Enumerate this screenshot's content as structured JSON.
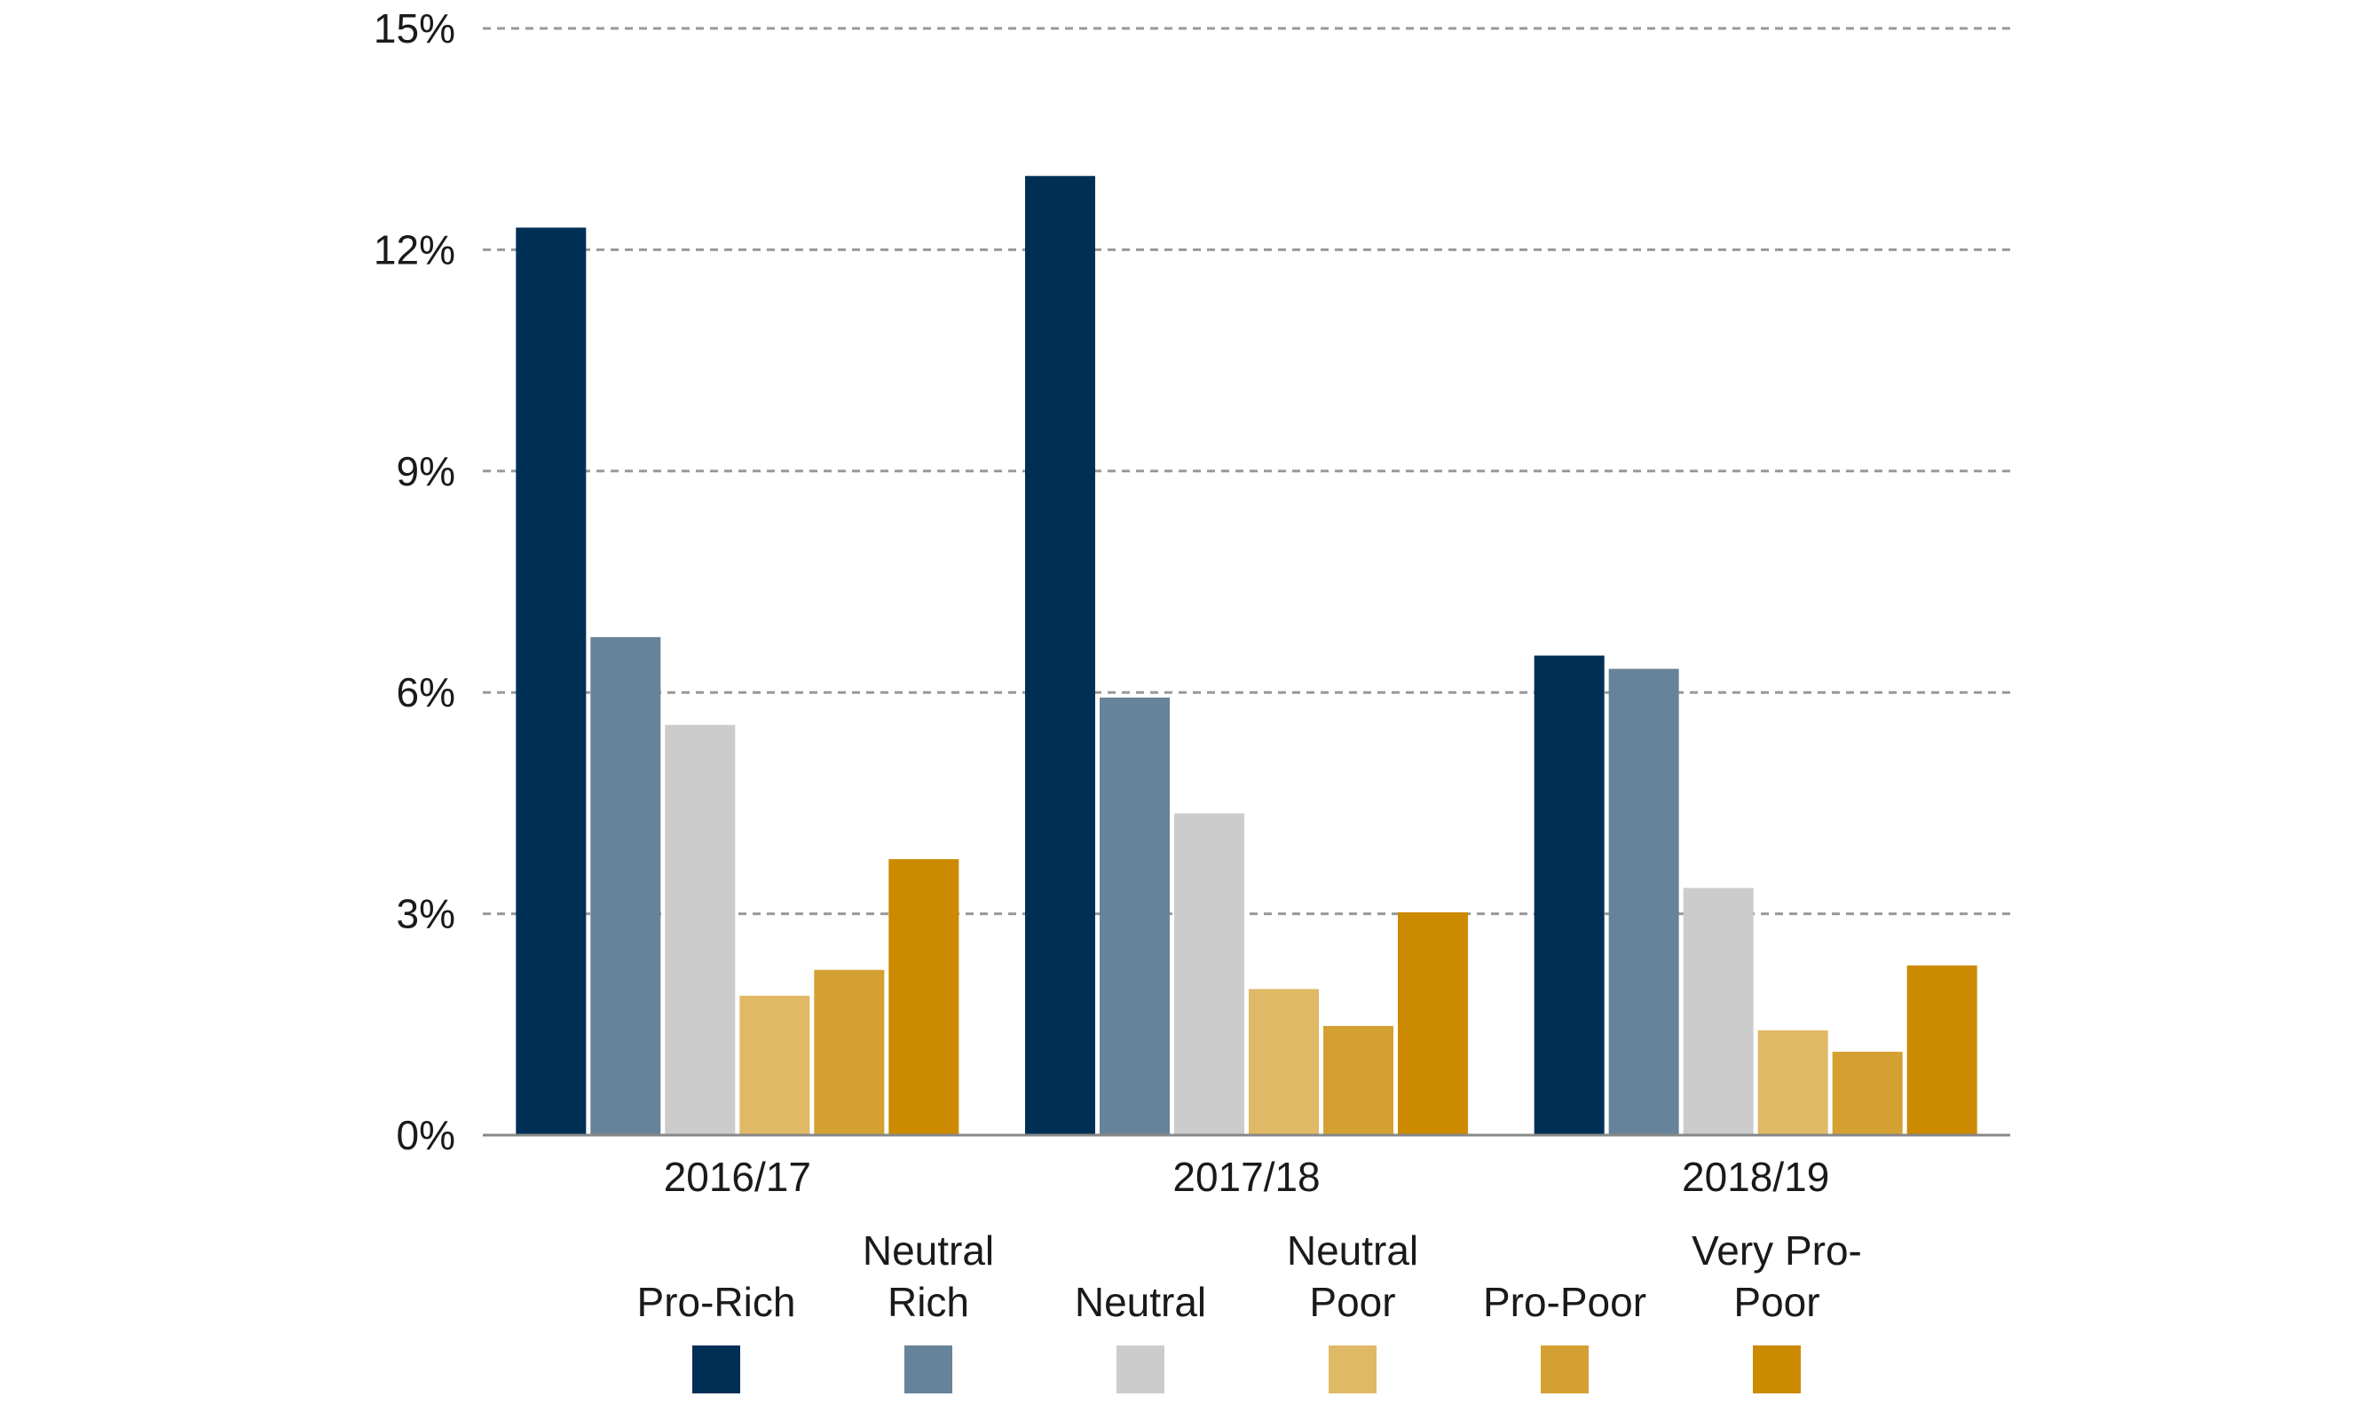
{
  "chart_data": {
    "type": "bar",
    "categories": [
      "2016/17",
      "2017/18",
      "2018/19"
    ],
    "series": [
      {
        "name": "Pro-Rich",
        "color": "#002f56",
        "values": [
          12.3,
          13.0,
          6.5
        ]
      },
      {
        "name": "Neutral Rich",
        "color": "#678399",
        "values": [
          6.75,
          5.93,
          6.32
        ]
      },
      {
        "name": "Neutral",
        "color": "#cccccc",
        "values": [
          5.56,
          4.36,
          3.35
        ]
      },
      {
        "name": "Neutral Poor",
        "color": "#e0b966",
        "values": [
          1.89,
          1.98,
          1.42
        ]
      },
      {
        "name": "Pro-Poor",
        "color": "#d4a031",
        "values": [
          2.24,
          1.48,
          1.13
        ]
      },
      {
        "name": "Very Pro-Poor",
        "color": "#cc8a00",
        "values": [
          3.74,
          3.02,
          2.3
        ]
      }
    ],
    "ylim": [
      0,
      15
    ],
    "yticks": [
      {
        "value": 0,
        "label": "0%"
      },
      {
        "value": 3,
        "label": "3%"
      },
      {
        "value": 6,
        "label": "6%"
      },
      {
        "value": 9,
        "label": "9%"
      },
      {
        "value": 12,
        "label": "12%"
      },
      {
        "value": 15,
        "label": "15%"
      }
    ],
    "grid": true,
    "legend": "bottom"
  }
}
